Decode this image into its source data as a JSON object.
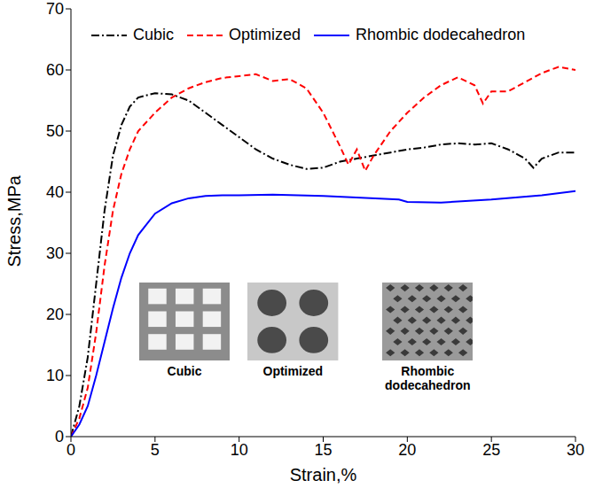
{
  "chart_data": {
    "type": "line",
    "x_label": "Strain,%",
    "y_label": "Stress,MPa",
    "xlim": [
      0,
      30
    ],
    "xticks": [
      0,
      5,
      10,
      15,
      20,
      25,
      30
    ],
    "ylim": [
      0,
      70
    ],
    "yticks": [
      0,
      10,
      20,
      30,
      40,
      50,
      60,
      70
    ],
    "grid": false,
    "legend": "top left",
    "annotations": [
      "Cubic",
      "Optimized",
      "Rhombic dodecahedron"
    ],
    "series": [
      {
        "name": "Cubic",
        "color": "#000000",
        "line_style": "dashdot",
        "x": [
          0,
          0.5,
          1,
          1.5,
          2,
          2.5,
          3,
          3.5,
          4,
          5,
          6,
          7,
          8,
          9,
          10,
          11,
          12,
          13,
          14,
          15,
          16,
          17,
          18,
          19,
          20,
          21,
          22,
          23,
          24,
          25,
          26,
          27,
          27.5,
          28,
          29,
          30
        ],
        "values": [
          0,
          5,
          13,
          25,
          37,
          46,
          51,
          54,
          55.5,
          56.2,
          56,
          55,
          53,
          51,
          49,
          47,
          45.5,
          44.5,
          43.8,
          44,
          45,
          45.5,
          46,
          46.5,
          47,
          47.3,
          47.8,
          48,
          47.8,
          48,
          47,
          45.5,
          44,
          45.5,
          46.5,
          46.5
        ]
      },
      {
        "name": "Optimized",
        "color": "#ff0000",
        "line_style": "dashed",
        "x": [
          0,
          0.5,
          1,
          1.5,
          2,
          2.5,
          3,
          3.5,
          4,
          5,
          6,
          7,
          8,
          9,
          10,
          11,
          12,
          13,
          14,
          15,
          16,
          16.5,
          17,
          17.5,
          18,
          19,
          20,
          21,
          22,
          23,
          24,
          24.5,
          25,
          26,
          27,
          28,
          29,
          30
        ],
        "values": [
          0,
          3,
          8,
          17,
          28,
          37,
          43,
          47,
          50,
          53,
          55.5,
          57,
          58,
          58.7,
          59,
          59.3,
          58.2,
          58.5,
          57,
          53,
          47.5,
          44.5,
          47,
          43.5,
          46,
          50,
          53,
          55.5,
          57.5,
          58.8,
          57.5,
          54.5,
          56.5,
          56.5,
          58,
          59.5,
          60.5,
          60
        ]
      },
      {
        "name": "Rhombic dodecahedron",
        "color": "#0000ff",
        "line_style": "solid",
        "x": [
          0,
          0.5,
          1,
          1.5,
          2,
          2.5,
          3,
          3.5,
          4,
          5,
          6,
          7,
          8,
          9,
          10,
          12,
          15,
          19.5,
          20,
          22,
          25,
          28,
          30
        ],
        "values": [
          0,
          2,
          5,
          10,
          15.5,
          21,
          26,
          30,
          33,
          36.5,
          38.2,
          39,
          39.4,
          39.5,
          39.5,
          39.6,
          39.4,
          38.8,
          38.4,
          38.3,
          38.8,
          39.5,
          40.2
        ]
      }
    ]
  }
}
